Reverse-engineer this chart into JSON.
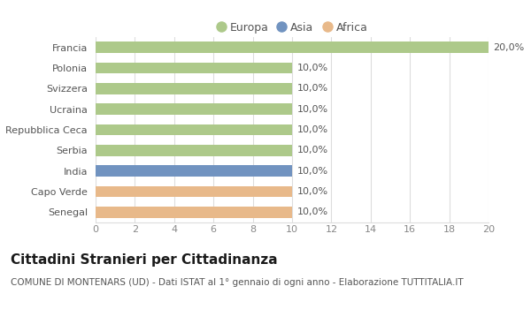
{
  "categories": [
    "Francia",
    "Polonia",
    "Svizzera",
    "Ucraina",
    "Repubblica Ceca",
    "Serbia",
    "India",
    "Capo Verde",
    "Senegal"
  ],
  "values": [
    20.0,
    10.0,
    10.0,
    10.0,
    10.0,
    10.0,
    10.0,
    10.0,
    10.0
  ],
  "bar_colors": [
    "#adc98a",
    "#adc98a",
    "#adc98a",
    "#adc98a",
    "#adc98a",
    "#adc98a",
    "#7193c0",
    "#e8b98a",
    "#e8b98a"
  ],
  "legend_labels": [
    "Europa",
    "Asia",
    "Africa"
  ],
  "legend_colors": [
    "#adc98a",
    "#7193c0",
    "#e8b98a"
  ],
  "xlim": [
    0,
    20
  ],
  "xticks": [
    0,
    2,
    4,
    6,
    8,
    10,
    12,
    14,
    16,
    18,
    20
  ],
  "title": "Cittadini Stranieri per Cittadinanza",
  "subtitle": "COMUNE DI MONTENARS (UD) - Dati ISTAT al 1° gennaio di ogni anno - Elaborazione TUTTITALIA.IT",
  "background_color": "#ffffff",
  "bar_height": 0.55,
  "title_fontsize": 11,
  "subtitle_fontsize": 7.5,
  "label_fontsize": 8,
  "tick_fontsize": 8,
  "legend_fontsize": 9,
  "grid_color": "#dddddd",
  "text_color": "#555555",
  "tick_color": "#888888"
}
